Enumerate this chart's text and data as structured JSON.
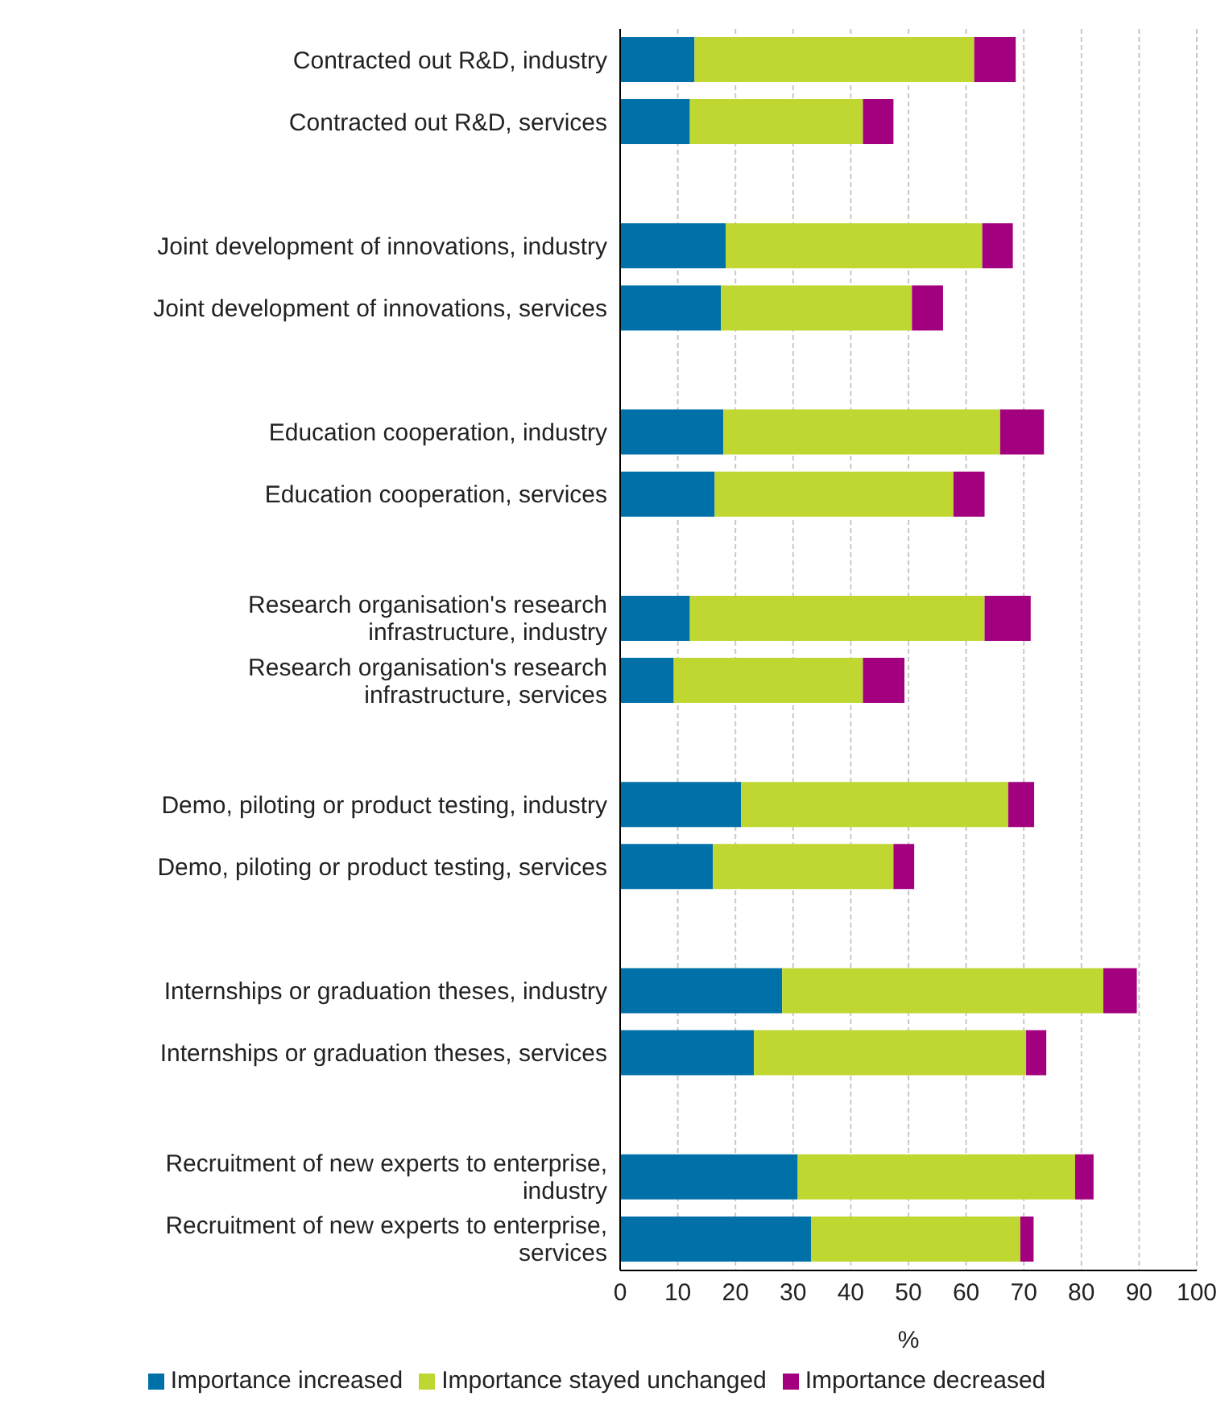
{
  "chart_data": {
    "type": "bar",
    "orientation": "horizontal",
    "stacked": true,
    "categories": [
      "Contracted out R&D, industry",
      "Contracted out R&D, services",
      null,
      "Joint development of innovations, industry",
      "Joint development of innovations, services",
      null,
      "Education cooperation, industry",
      "Education cooperation, services",
      null,
      "Research organisation's research infrastructure, industry",
      "Research organisation's research infrastructure, services",
      null,
      "Demo, piloting or product testing, industry",
      "Demo, piloting or product testing, services",
      null,
      "Internships or graduation theses, industry",
      "Internships or graduation theses, services",
      null,
      "Recruitment of new experts to enterprise, industry",
      "Recruitment of new experts to enterprise, services"
    ],
    "series": [
      {
        "name": "Importance increased",
        "color": "#0070a8",
        "values": [
          12.9,
          12.1,
          null,
          18.3,
          17.5,
          null,
          17.9,
          16.4,
          null,
          12.1,
          9.3,
          null,
          21,
          16.1,
          null,
          28.1,
          23.2,
          null,
          30.8,
          33.1
        ]
      },
      {
        "name": "Importance stayed unchanged",
        "color": "#bfd730",
        "values": [
          48.5,
          30,
          null,
          44.5,
          33.1,
          null,
          48,
          41.4,
          null,
          51.1,
          32.8,
          null,
          46.3,
          31.3,
          null,
          55.7,
          47.2,
          null,
          48.1,
          36.3
        ]
      },
      {
        "name": "Importance decreased",
        "color": "#a3007f",
        "values": [
          7.2,
          5.3,
          null,
          5.3,
          5.4,
          null,
          7.6,
          5.4,
          null,
          8,
          7.2,
          null,
          4.5,
          3.6,
          null,
          5.8,
          3.5,
          null,
          3.2,
          2.3
        ]
      }
    ],
    "xlabel": "%",
    "xlim": [
      0,
      100
    ],
    "xticks": [
      0,
      10,
      20,
      30,
      40,
      50,
      60,
      70,
      80,
      90,
      100
    ],
    "grid": "x",
    "legend": "bottom"
  }
}
